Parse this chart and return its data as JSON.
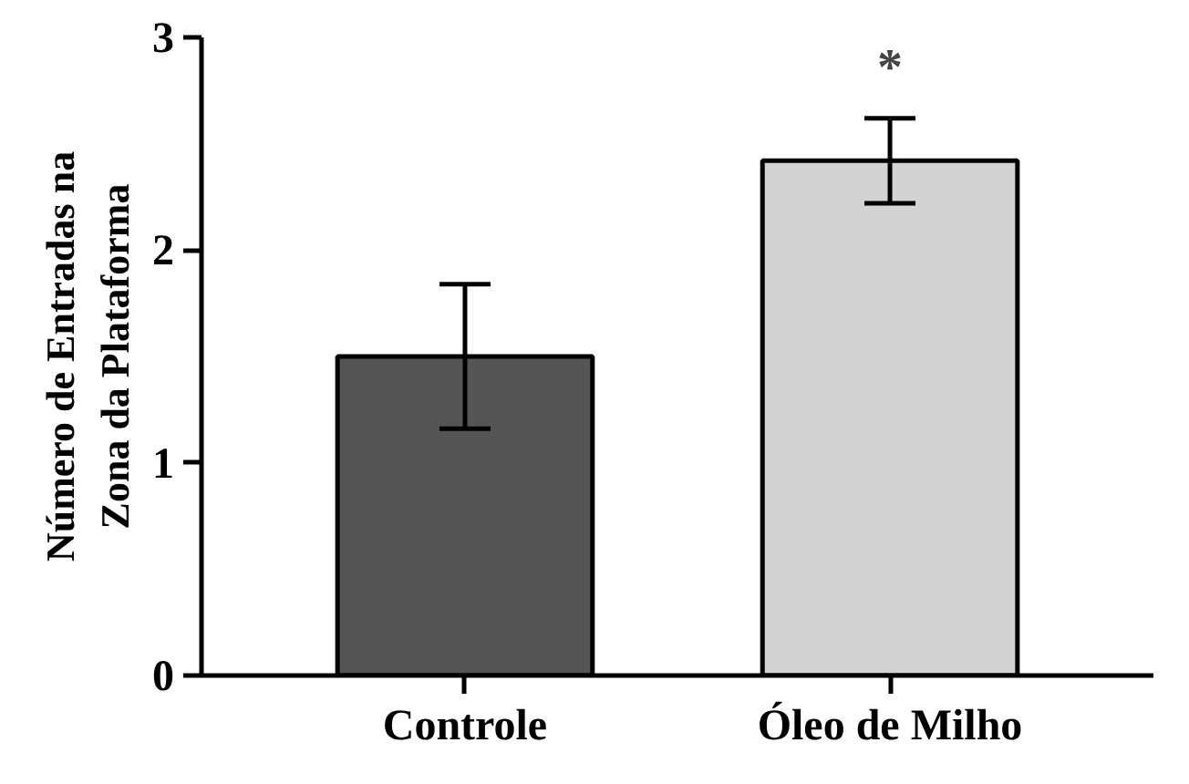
{
  "chart_data": {
    "type": "bar",
    "ylabel": "Número de Entradas na\nZona da Plataforma",
    "categories": [
      "Controle",
      "Óleo de Milho"
    ],
    "values": [
      1.5,
      2.42
    ],
    "colors": [
      "#555555",
      "#d3d3d3"
    ],
    "errors": [
      [
        1.16,
        1.84
      ],
      [
        2.22,
        2.62
      ]
    ],
    "ylim": [
      0,
      3
    ],
    "yticks": [
      0,
      1,
      2,
      3
    ],
    "grid": false,
    "annotations": [
      "*"
    ]
  }
}
